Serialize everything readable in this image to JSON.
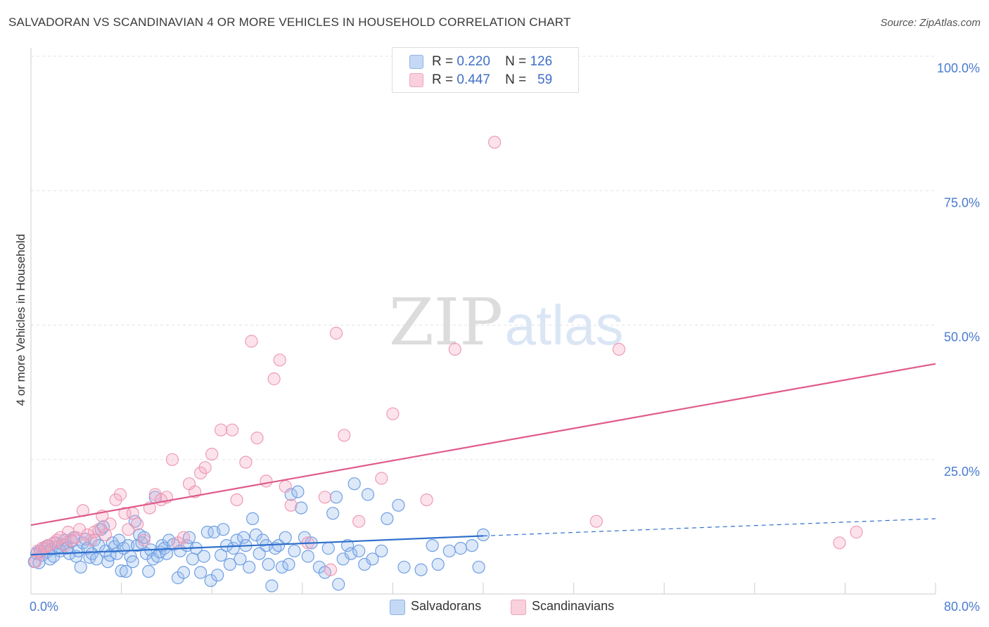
{
  "title": "SALVADORAN VS SCANDINAVIAN 4 OR MORE VEHICLES IN HOUSEHOLD CORRELATION CHART",
  "source": "Source: ZipAtlas.com",
  "watermark": {
    "zip": "ZIP",
    "atlas": "atlas"
  },
  "legend": [
    {
      "r_label": "R =",
      "r_value": "0.220",
      "n_label": "N =",
      "n_value": "126",
      "color": "#9ec0ef"
    },
    {
      "r_label": "R =",
      "r_value": "0.447",
      "n_label": "N =",
      "n_value": "59",
      "color": "#f4b5c9"
    }
  ],
  "bottom_legend": [
    "Salvadorans",
    "Scandinavians"
  ],
  "chart_data": {
    "type": "scatter",
    "title": "SALVADORAN VS SCANDINAVIAN 4 OR MORE VEHICLES IN HOUSEHOLD CORRELATION CHART",
    "xlabel": "",
    "ylabel": "4 or more Vehicles in Household",
    "xlim": [
      0,
      80
    ],
    "ylim": [
      0,
      100
    ],
    "x_tick_labels": [
      "0.0%",
      "80.0%"
    ],
    "y_tick_labels": [
      "100.0%",
      "75.0%",
      "50.0%",
      "25.0%"
    ],
    "y_tick_values": [
      100,
      75,
      50,
      25
    ],
    "grid": true,
    "legend_placement": "top-center",
    "series": [
      {
        "name": "Salvadorans",
        "color": "#6f9fe3",
        "line_color": "#2f6fcb",
        "trend": {
          "x0": 0,
          "y0": 7.3,
          "x1": 40,
          "y1": 10.8,
          "dashed_to": 80,
          "dashed_y": 14.0
        },
        "points": [
          [
            0.3,
            6.0
          ],
          [
            0.5,
            7.5
          ],
          [
            0.7,
            5.8
          ],
          [
            0.8,
            8.0
          ],
          [
            1.0,
            7.2
          ],
          [
            1.2,
            8.5
          ],
          [
            1.4,
            7.8
          ],
          [
            1.5,
            9.0
          ],
          [
            1.7,
            6.5
          ],
          [
            1.8,
            8.3
          ],
          [
            2.0,
            7.0
          ],
          [
            2.2,
            9.5
          ],
          [
            2.4,
            8.8
          ],
          [
            2.6,
            8.0
          ],
          [
            2.8,
            9.2
          ],
          [
            3.0,
            10.0
          ],
          [
            3.2,
            8.5
          ],
          [
            3.4,
            7.5
          ],
          [
            3.6,
            9.8
          ],
          [
            3.8,
            10.5
          ],
          [
            4.0,
            7.0
          ],
          [
            4.2,
            8.0
          ],
          [
            4.4,
            5.0
          ],
          [
            4.6,
            9.5
          ],
          [
            4.8,
            10.2
          ],
          [
            5.0,
            8.5
          ],
          [
            5.2,
            6.8
          ],
          [
            5.4,
            7.5
          ],
          [
            5.6,
            10.0
          ],
          [
            5.8,
            6.5
          ],
          [
            6.0,
            9.0
          ],
          [
            6.2,
            12.0
          ],
          [
            6.4,
            12.5
          ],
          [
            6.6,
            8.0
          ],
          [
            6.8,
            6.0
          ],
          [
            7.0,
            7.2
          ],
          [
            7.2,
            9.5
          ],
          [
            7.4,
            8.8
          ],
          [
            7.6,
            7.5
          ],
          [
            7.8,
            10.0
          ],
          [
            8.0,
            4.3
          ],
          [
            8.2,
            8.5
          ],
          [
            8.4,
            4.2
          ],
          [
            8.6,
            9.0
          ],
          [
            8.8,
            7.0
          ],
          [
            9.0,
            6.0
          ],
          [
            9.2,
            13.5
          ],
          [
            9.4,
            9.0
          ],
          [
            9.6,
            11.0
          ],
          [
            9.8,
            9.5
          ],
          [
            10.0,
            10.5
          ],
          [
            10.2,
            7.5
          ],
          [
            10.4,
            4.2
          ],
          [
            10.6,
            8.2
          ],
          [
            10.8,
            6.5
          ],
          [
            11.0,
            18.0
          ],
          [
            11.2,
            7.0
          ],
          [
            11.4,
            7.8
          ],
          [
            11.6,
            9.0
          ],
          [
            11.8,
            8.5
          ],
          [
            12.0,
            7.5
          ],
          [
            12.2,
            10.0
          ],
          [
            12.6,
            9.2
          ],
          [
            13.0,
            3.0
          ],
          [
            13.2,
            8.0
          ],
          [
            13.5,
            4.0
          ],
          [
            13.8,
            9.0
          ],
          [
            14.0,
            10.5
          ],
          [
            14.3,
            6.5
          ],
          [
            14.6,
            8.5
          ],
          [
            15.0,
            4.0
          ],
          [
            15.3,
            7.0
          ],
          [
            15.6,
            11.5
          ],
          [
            15.9,
            2.5
          ],
          [
            16.2,
            11.5
          ],
          [
            16.5,
            3.5
          ],
          [
            16.8,
            7.2
          ],
          [
            17.0,
            12.0
          ],
          [
            17.3,
            9.0
          ],
          [
            17.6,
            5.5
          ],
          [
            17.9,
            8.5
          ],
          [
            18.2,
            10.0
          ],
          [
            18.5,
            6.5
          ],
          [
            18.8,
            10.5
          ],
          [
            19.0,
            9.0
          ],
          [
            19.3,
            5.0
          ],
          [
            19.6,
            14.0
          ],
          [
            19.9,
            11.0
          ],
          [
            20.2,
            7.5
          ],
          [
            20.5,
            10.0
          ],
          [
            20.8,
            9.0
          ],
          [
            21.0,
            5.5
          ],
          [
            21.3,
            1.5
          ],
          [
            21.6,
            8.5
          ],
          [
            21.9,
            9.0
          ],
          [
            22.2,
            5.0
          ],
          [
            22.5,
            10.5
          ],
          [
            22.8,
            5.5
          ],
          [
            23.0,
            18.5
          ],
          [
            23.3,
            8.0
          ],
          [
            23.6,
            19.0
          ],
          [
            23.9,
            16.0
          ],
          [
            24.2,
            10.5
          ],
          [
            24.5,
            7.0
          ],
          [
            24.8,
            9.5
          ],
          [
            25.5,
            5.0
          ],
          [
            26.0,
            4.0
          ],
          [
            26.3,
            8.5
          ],
          [
            26.7,
            15.0
          ],
          [
            27.0,
            18.0
          ],
          [
            27.2,
            1.8
          ],
          [
            27.6,
            6.5
          ],
          [
            28.0,
            9.0
          ],
          [
            28.3,
            7.5
          ],
          [
            28.6,
            20.5
          ],
          [
            29.0,
            8.0
          ],
          [
            29.5,
            5.5
          ],
          [
            29.8,
            18.5
          ],
          [
            30.2,
            6.5
          ],
          [
            31.0,
            8.0
          ],
          [
            31.5,
            14.0
          ],
          [
            32.5,
            16.5
          ],
          [
            33.0,
            5.0
          ],
          [
            34.5,
            4.5
          ],
          [
            35.5,
            9.0
          ],
          [
            36.0,
            5.5
          ],
          [
            37.0,
            8.0
          ],
          [
            38.0,
            8.5
          ],
          [
            39.0,
            9.0
          ],
          [
            40.0,
            11.0
          ],
          [
            39.6,
            5.0
          ]
        ]
      },
      {
        "name": "Scandinavians",
        "color": "#f4a3bd",
        "line_color": "#e05a8c",
        "trend": {
          "x0": 0,
          "y0": 12.8,
          "x1": 80,
          "y1": 42.8
        },
        "points": [
          [
            0.4,
            6.0
          ],
          [
            0.6,
            8.0
          ],
          [
            0.8,
            7.5
          ],
          [
            1.0,
            8.5
          ],
          [
            1.3,
            8.8
          ],
          [
            1.6,
            9.0
          ],
          [
            2.0,
            9.5
          ],
          [
            2.3,
            10.0
          ],
          [
            2.6,
            10.5
          ],
          [
            3.0,
            9.0
          ],
          [
            3.3,
            11.5
          ],
          [
            3.6,
            10.0
          ],
          [
            4.0,
            10.5
          ],
          [
            4.3,
            12.0
          ],
          [
            4.6,
            15.5
          ],
          [
            5.0,
            11.0
          ],
          [
            5.3,
            10.0
          ],
          [
            5.6,
            11.5
          ],
          [
            6.0,
            12.0
          ],
          [
            6.3,
            14.5
          ],
          [
            6.6,
            11.0
          ],
          [
            7.0,
            13.0
          ],
          [
            7.5,
            17.5
          ],
          [
            7.9,
            18.5
          ],
          [
            8.3,
            15.0
          ],
          [
            8.6,
            12.0
          ],
          [
            9.0,
            15.0
          ],
          [
            9.4,
            13.0
          ],
          [
            10.0,
            10.0
          ],
          [
            10.5,
            16.0
          ],
          [
            11.0,
            18.5
          ],
          [
            11.5,
            17.5
          ],
          [
            12.0,
            18.0
          ],
          [
            12.5,
            25.0
          ],
          [
            13.0,
            9.5
          ],
          [
            13.5,
            10.5
          ],
          [
            14.0,
            20.5
          ],
          [
            14.5,
            19.0
          ],
          [
            15.0,
            22.5
          ],
          [
            15.4,
            23.5
          ],
          [
            16.0,
            26.0
          ],
          [
            16.8,
            30.5
          ],
          [
            17.8,
            30.5
          ],
          [
            18.2,
            17.5
          ],
          [
            19.0,
            24.5
          ],
          [
            19.5,
            47.0
          ],
          [
            20.0,
            29.0
          ],
          [
            20.8,
            21.0
          ],
          [
            21.5,
            40.0
          ],
          [
            22.0,
            43.5
          ],
          [
            22.5,
            20.0
          ],
          [
            23.0,
            16.5
          ],
          [
            24.5,
            9.5
          ],
          [
            26.0,
            18.0
          ],
          [
            26.5,
            4.5
          ],
          [
            27.0,
            48.5
          ],
          [
            27.7,
            29.5
          ],
          [
            29.0,
            13.5
          ],
          [
            31.0,
            21.5
          ],
          [
            32.0,
            33.5
          ],
          [
            35.0,
            17.5
          ],
          [
            37.5,
            45.5
          ],
          [
            41.0,
            84.0
          ],
          [
            50.0,
            13.5
          ],
          [
            52.0,
            45.5
          ],
          [
            71.5,
            9.5
          ],
          [
            73.0,
            11.5
          ]
        ]
      }
    ]
  }
}
